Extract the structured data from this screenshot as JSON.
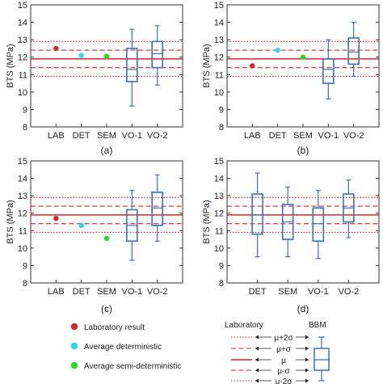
{
  "chart_data": {
    "type": "box",
    "ylabel": "BTS (MPa)",
    "ylim": [
      8,
      15
    ],
    "yticks": [
      8,
      9,
      10,
      11,
      12,
      13,
      14,
      15
    ],
    "colors": {
      "laboratory": "#d62728",
      "deterministic": "#29d9ee",
      "semi_deterministic": "#22dd22",
      "bbm": "#3a6fc4",
      "reference": "#d62728"
    },
    "reference_lines": {
      "mu": 11.9,
      "mu_plus_sigma": 12.4,
      "mu_minus_sigma": 11.4,
      "mu_plus_2sigma": 12.9,
      "mu_minus_2sigma": 10.9
    },
    "panels": [
      {
        "label": "(a)",
        "categories": [
          "LAB",
          "DET",
          "SEM",
          "VO-1",
          "VO-2"
        ],
        "points": [
          {
            "category": "LAB",
            "kind": "laboratory",
            "value": 12.5
          },
          {
            "category": "DET",
            "kind": "deterministic",
            "value": 12.1
          },
          {
            "category": "SEM",
            "kind": "semi_deterministic",
            "value": 12.05
          }
        ],
        "boxes": [
          {
            "category": "VO-1",
            "min": 9.2,
            "q1": 10.6,
            "median": 11.3,
            "q3": 12.5,
            "max": 13.6
          },
          {
            "category": "VO-2",
            "min": 10.4,
            "q1": 11.4,
            "median": 12.2,
            "q3": 12.9,
            "max": 13.8
          }
        ]
      },
      {
        "label": "(b)",
        "categories": [
          "LAB",
          "DET",
          "SEM",
          "VO-1",
          "VO-2"
        ],
        "points": [
          {
            "category": "LAB",
            "kind": "laboratory",
            "value": 11.5
          },
          {
            "category": "DET",
            "kind": "deterministic",
            "value": 12.4
          },
          {
            "category": "SEM",
            "kind": "semi_deterministic",
            "value": 12.0
          }
        ],
        "boxes": [
          {
            "category": "VO-1",
            "min": 9.6,
            "q1": 10.5,
            "median": 11.3,
            "q3": 11.9,
            "max": 13.0
          },
          {
            "category": "VO-2",
            "min": 10.9,
            "q1": 11.6,
            "median": 12.3,
            "q3": 13.1,
            "max": 14.0
          }
        ]
      },
      {
        "label": "(c)",
        "categories": [
          "LAB",
          "DET",
          "SEM",
          "VO-1",
          "VO-2"
        ],
        "points": [
          {
            "category": "LAB",
            "kind": "laboratory",
            "value": 11.7
          },
          {
            "category": "DET",
            "kind": "deterministic",
            "value": 11.3
          },
          {
            "category": "SEM",
            "kind": "semi_deterministic",
            "value": 10.55
          }
        ],
        "boxes": [
          {
            "category": "VO-1",
            "min": 9.3,
            "q1": 10.4,
            "median": 11.3,
            "q3": 12.2,
            "max": 13.3
          },
          {
            "category": "VO-2",
            "min": 10.4,
            "q1": 11.3,
            "median": 12.3,
            "q3": 13.2,
            "max": 14.2
          }
        ]
      },
      {
        "label": "(d)",
        "categories": [
          "DET",
          "SEM",
          "VO-1",
          "VO-2"
        ],
        "points": [],
        "boxes": [
          {
            "category": "DET",
            "min": 9.5,
            "q1": 10.8,
            "median": 11.9,
            "q3": 13.1,
            "max": 14.3
          },
          {
            "category": "SEM",
            "min": 9.5,
            "q1": 10.5,
            "median": 11.5,
            "q3": 12.5,
            "max": 13.5
          },
          {
            "category": "VO-1",
            "min": 9.4,
            "q1": 10.4,
            "median": 11.4,
            "q3": 12.3,
            "max": 13.3
          },
          {
            "category": "VO-2",
            "min": 10.6,
            "q1": 11.5,
            "median": 12.3,
            "q3": 13.1,
            "max": 13.9
          }
        ]
      }
    ]
  },
  "legend": {
    "points": [
      {
        "label": "Laboratory result",
        "kind": "laboratory"
      },
      {
        "label": "Average deterministic",
        "kind": "deterministic"
      },
      {
        "label": "Average semi-deterministic",
        "kind": "semi_deterministic"
      }
    ],
    "laboratory_header": "Laboratory",
    "bbm_header": "BBM",
    "lines": [
      {
        "label": "μ+2σ",
        "style": "dotted"
      },
      {
        "label": "μ+σ",
        "style": "dashed"
      },
      {
        "label": "μ",
        "style": "solid"
      },
      {
        "label": "μ-σ",
        "style": "dashed"
      },
      {
        "label": "μ-2σ",
        "style": "dotted"
      }
    ]
  }
}
